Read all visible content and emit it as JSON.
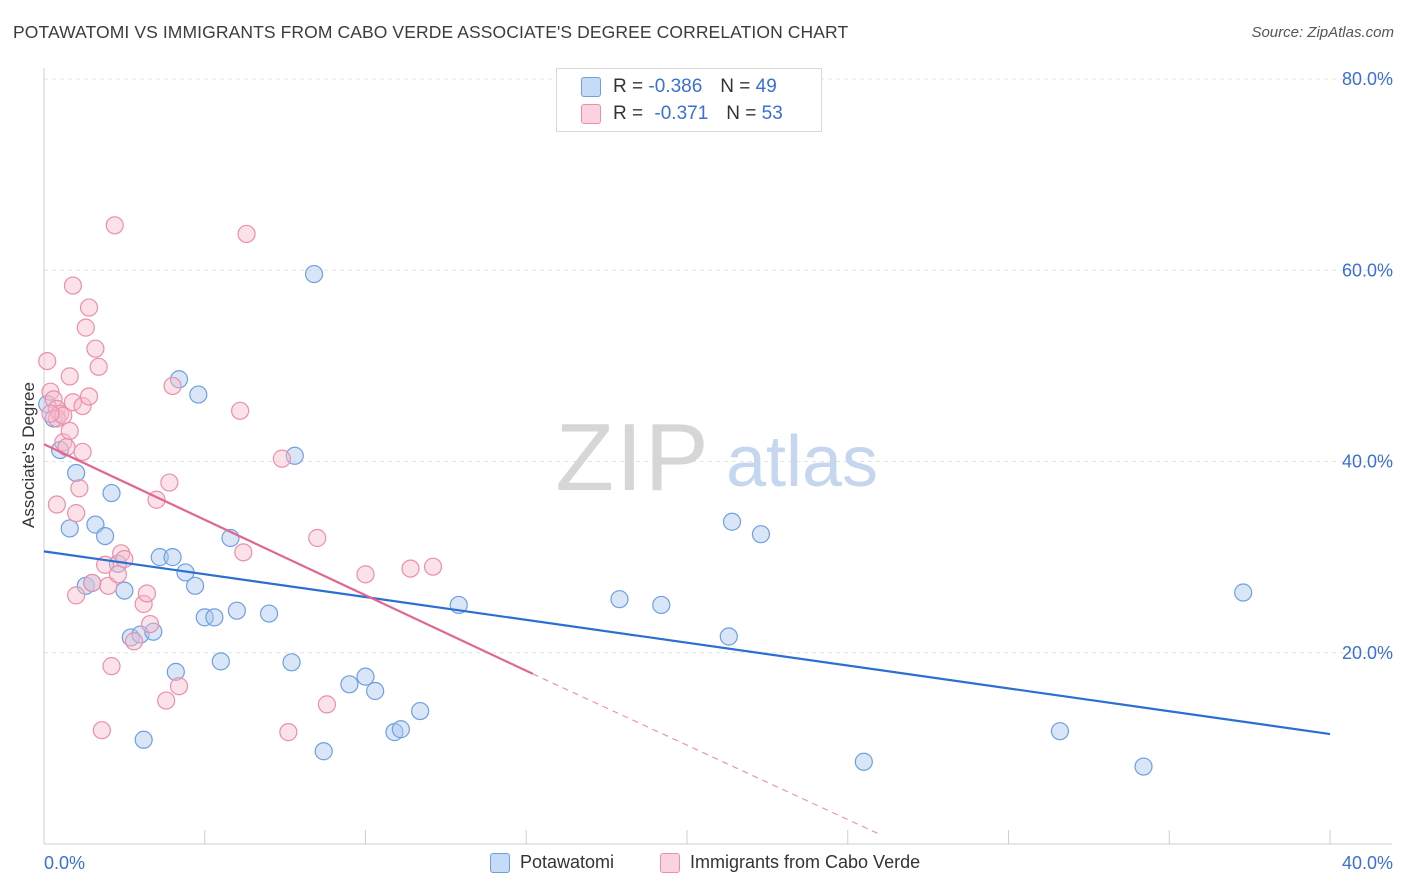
{
  "header": {
    "title": "POTAWATOMI VS IMMIGRANTS FROM CABO VERDE ASSOCIATE'S DEGREE CORRELATION CHART",
    "source": "Source: ZipAtlas.com"
  },
  "watermark": {
    "zip": "ZIP",
    "atlas": "atlas"
  },
  "legend": {
    "rows": [
      {
        "r_label": "R =",
        "r_value": "-0.386",
        "n_label": "N =",
        "n_value": "49"
      },
      {
        "r_label": "R =",
        "r_value": "-0.371",
        "n_label": "N =",
        "n_value": "53"
      }
    ]
  },
  "colors": {
    "blue_fill": "#aac8f0",
    "blue_stroke": "#6f9fe0",
    "blue_line": "#2a6fd1",
    "pink_fill": "#f7bccd",
    "pink_stroke": "#eb8fab",
    "pink_line": "#e0678f",
    "axis_label": "#3b6fd4",
    "grid": "#e3e3e3"
  },
  "chart_data": {
    "type": "scatter",
    "title": "POTAWATOMI VS IMMIGRANTS FROM CABO VERDE ASSOCIATE'S DEGREE CORRELATION CHART",
    "xlabel": "",
    "ylabel": "Associate's Degree",
    "xlim": [
      0,
      40
    ],
    "ylim": [
      0,
      80
    ],
    "x_tick_labels": [
      "0.0%",
      "40.0%"
    ],
    "y_tick_labels": [
      "20.0%",
      "40.0%",
      "60.0%",
      "80.0%"
    ],
    "y_ticks": [
      20,
      40,
      60,
      80
    ],
    "grid": true,
    "legend_placement": "top-center",
    "series": [
      {
        "name": "Potawatomi",
        "color": "#aac8f0",
        "r": -0.386,
        "n": 49,
        "trend": {
          "x": [
            0,
            40
          ],
          "y": [
            30.6,
            11.5
          ]
        },
        "points": [
          [
            0.1,
            46.0
          ],
          [
            0.3,
            44.5
          ],
          [
            0.5,
            41.2
          ],
          [
            0.8,
            33.0
          ],
          [
            1.0,
            38.8
          ],
          [
            1.3,
            27.0
          ],
          [
            1.5,
            27.3
          ],
          [
            1.6,
            33.4
          ],
          [
            1.9,
            32.2
          ],
          [
            2.1,
            36.7
          ],
          [
            2.3,
            29.3
          ],
          [
            2.5,
            26.5
          ],
          [
            2.7,
            21.6
          ],
          [
            3.0,
            21.9
          ],
          [
            3.1,
            10.9
          ],
          [
            3.4,
            22.2
          ],
          [
            3.6,
            30.0
          ],
          [
            4.0,
            30.0
          ],
          [
            4.1,
            18.0
          ],
          [
            4.2,
            48.6
          ],
          [
            4.4,
            28.4
          ],
          [
            4.7,
            27.0
          ],
          [
            4.8,
            47.0
          ],
          [
            5.0,
            23.7
          ],
          [
            5.3,
            23.7
          ],
          [
            5.5,
            19.1
          ],
          [
            5.8,
            32.0
          ],
          [
            6.0,
            24.4
          ],
          [
            7.0,
            24.1
          ],
          [
            7.7,
            19.0
          ],
          [
            7.8,
            40.6
          ],
          [
            8.4,
            59.6
          ],
          [
            8.7,
            9.7
          ],
          [
            9.5,
            16.7
          ],
          [
            10.0,
            17.5
          ],
          [
            10.3,
            16.0
          ],
          [
            10.9,
            11.7
          ],
          [
            11.1,
            12.0
          ],
          [
            11.7,
            13.9
          ],
          [
            12.9,
            25.0
          ],
          [
            17.9,
            25.6
          ],
          [
            19.2,
            25.0
          ],
          [
            21.3,
            21.7
          ],
          [
            21.4,
            33.7
          ],
          [
            22.3,
            32.4
          ],
          [
            25.5,
            8.6
          ],
          [
            31.6,
            11.8
          ],
          [
            34.2,
            8.1
          ],
          [
            37.3,
            26.3
          ]
        ]
      },
      {
        "name": "Immigrants from Cabo Verde",
        "color": "#f7bccd",
        "r": -0.371,
        "n": 53,
        "trend": {
          "x": [
            0,
            15.2
          ],
          "y": [
            41.8,
            17.8
          ]
        },
        "trend_dashed": {
          "x": [
            15.2,
            26.0
          ],
          "y": [
            17.8,
            1.0
          ]
        },
        "points": [
          [
            0.1,
            50.5
          ],
          [
            0.2,
            47.3
          ],
          [
            0.3,
            46.5
          ],
          [
            0.4,
            45.5
          ],
          [
            0.5,
            45.0
          ],
          [
            0.4,
            44.5
          ],
          [
            0.6,
            44.8
          ],
          [
            0.6,
            42.0
          ],
          [
            0.7,
            41.5
          ],
          [
            0.8,
            48.9
          ],
          [
            0.8,
            43.2
          ],
          [
            0.9,
            58.4
          ],
          [
            0.9,
            46.2
          ],
          [
            1.0,
            26.0
          ],
          [
            1.0,
            34.6
          ],
          [
            1.1,
            37.2
          ],
          [
            1.2,
            45.8
          ],
          [
            1.2,
            41.0
          ],
          [
            1.3,
            54.0
          ],
          [
            1.4,
            56.1
          ],
          [
            1.4,
            46.8
          ],
          [
            1.5,
            27.3
          ],
          [
            1.6,
            51.8
          ],
          [
            1.7,
            49.9
          ],
          [
            1.8,
            11.9
          ],
          [
            1.9,
            29.2
          ],
          [
            2.0,
            27.0
          ],
          [
            2.1,
            18.6
          ],
          [
            2.2,
            64.7
          ],
          [
            2.3,
            28.2
          ],
          [
            2.4,
            30.4
          ],
          [
            2.5,
            29.8
          ],
          [
            2.8,
            21.2
          ],
          [
            3.1,
            25.1
          ],
          [
            3.2,
            26.2
          ],
          [
            3.3,
            23.0
          ],
          [
            3.5,
            36.0
          ],
          [
            3.8,
            15.0
          ],
          [
            3.9,
            37.8
          ],
          [
            4.0,
            47.9
          ],
          [
            4.2,
            16.5
          ],
          [
            0.4,
            35.5
          ],
          [
            6.1,
            45.3
          ],
          [
            6.2,
            30.5
          ],
          [
            6.3,
            63.8
          ],
          [
            7.4,
            40.3
          ],
          [
            7.6,
            11.7
          ],
          [
            8.5,
            32.0
          ],
          [
            8.8,
            14.6
          ],
          [
            10.0,
            28.2
          ],
          [
            11.4,
            28.8
          ],
          [
            12.1,
            29.0
          ],
          [
            0.2,
            45.0
          ]
        ]
      }
    ]
  },
  "bottom_legend": {
    "items": [
      {
        "label": "Potawatomi"
      },
      {
        "label": "Immigrants from Cabo Verde"
      }
    ]
  }
}
